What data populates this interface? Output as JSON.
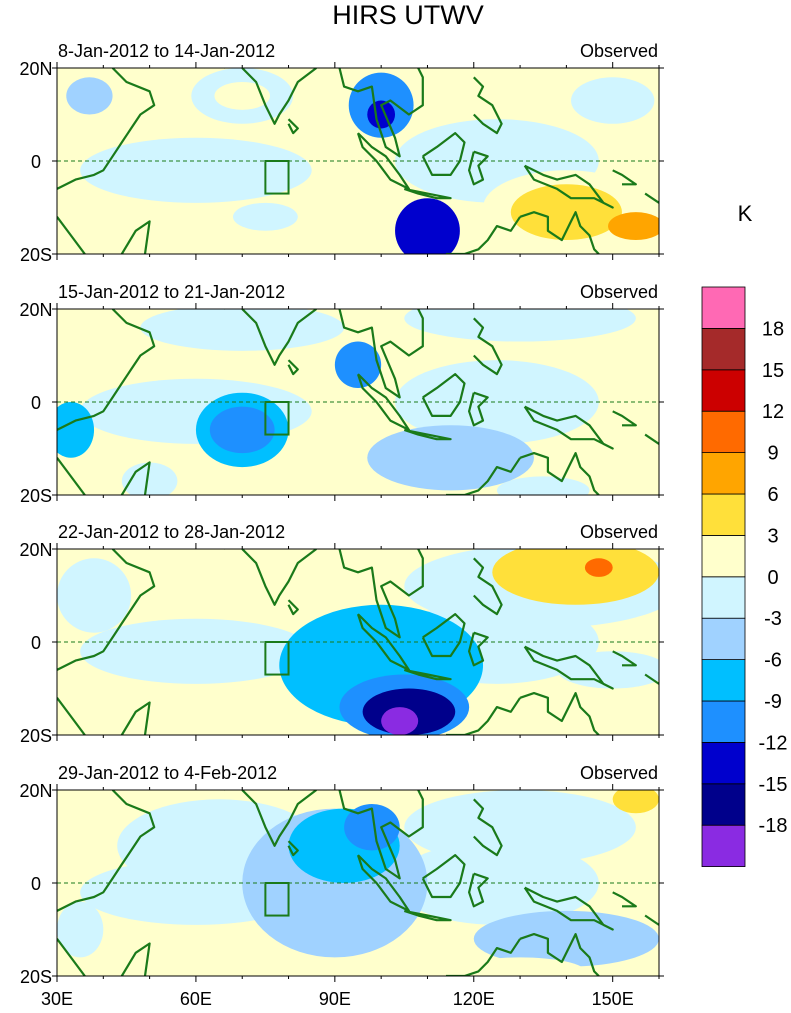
{
  "chart_data": {
    "type": "heatmap",
    "title": "HIRS UTWV",
    "units": "K",
    "x_range": [
      30,
      160
    ],
    "y_range": [
      -20,
      20
    ],
    "xticks": [
      {
        "value": 30,
        "label": "30E"
      },
      {
        "value": 60,
        "label": "60E"
      },
      {
        "value": 90,
        "label": "90E"
      },
      {
        "value": 120,
        "label": "120E"
      },
      {
        "value": 150,
        "label": "150E"
      }
    ],
    "yticks": [
      {
        "value": 20,
        "label": "20N"
      },
      {
        "value": 0,
        "label": "0"
      },
      {
        "value": -20,
        "label": "20S"
      }
    ],
    "colorbar": {
      "colors": [
        "#8a2be2",
        "#00008b",
        "#0000cd",
        "#1e90ff",
        "#00bfff",
        "#a0d2ff",
        "#d0f5ff",
        "#ffffcc",
        "#ffe03a",
        "#ffa500",
        "#ff6a00",
        "#cc0000",
        "#a52a2a",
        "#ff69b4"
      ],
      "labels": [
        "-18",
        "-15",
        "-12",
        "-9",
        "-6",
        "-3",
        "0",
        "3",
        "6",
        "9",
        "12",
        "15",
        "18"
      ]
    },
    "box_region": {
      "lon": [
        75,
        80
      ],
      "lat": [
        -7,
        0
      ]
    },
    "panels": [
      {
        "period": "8-Jan-2012 to 14-Jan-2012",
        "label": "Observed",
        "features": [
          {
            "lon": 70,
            "lat": 14,
            "rx": 11,
            "ry": 6,
            "level": 6
          },
          {
            "lon": 70,
            "lat": 14,
            "rx": 6,
            "ry": 3,
            "level": 7
          },
          {
            "lon": 37,
            "lat": 14,
            "rx": 5,
            "ry": 4,
            "level": 5
          },
          {
            "lon": 150,
            "lat": 13,
            "rx": 9,
            "ry": 5,
            "level": 6
          },
          {
            "lon": 140,
            "lat": -10,
            "rx": 18,
            "ry": 8,
            "level": 7
          },
          {
            "lon": 140,
            "lat": -11,
            "rx": 12,
            "ry": 6,
            "level": 8
          },
          {
            "lon": 155,
            "lat": -14,
            "rx": 6,
            "ry": 3,
            "level": 9
          },
          {
            "lon": 75,
            "lat": -12,
            "rx": 7,
            "ry": 3,
            "level": 6
          },
          {
            "lon": 100,
            "lat": 12,
            "rx": 7,
            "ry": 7,
            "level": 3
          },
          {
            "lon": 100,
            "lat": 10,
            "rx": 3,
            "ry": 3,
            "level": 2
          },
          {
            "lon": 110,
            "lat": -15,
            "rx": 7,
            "ry": 7,
            "level": 2
          }
        ]
      },
      {
        "period": "15-Jan-2012 to 21-Jan-2012",
        "label": "Observed",
        "features": [
          {
            "lon": 70,
            "lat": 16,
            "rx": 22,
            "ry": 5,
            "level": 6
          },
          {
            "lon": 130,
            "lat": 18,
            "rx": 25,
            "ry": 5,
            "level": 6
          },
          {
            "lon": 50,
            "lat": -17,
            "rx": 6,
            "ry": 4,
            "level": 6
          },
          {
            "lon": 135,
            "lat": -19,
            "rx": 10,
            "ry": 3,
            "level": 6
          },
          {
            "lon": 70,
            "lat": -6,
            "rx": 10,
            "ry": 8,
            "level": 4
          },
          {
            "lon": 70,
            "lat": -6,
            "rx": 7,
            "ry": 5,
            "level": 3
          },
          {
            "lon": 33,
            "lat": -6,
            "rx": 5,
            "ry": 6,
            "level": 4
          },
          {
            "lon": 95,
            "lat": 8,
            "rx": 5,
            "ry": 5,
            "level": 3
          },
          {
            "lon": 115,
            "lat": -12,
            "rx": 18,
            "ry": 7,
            "level": 5
          }
        ]
      },
      {
        "period": "22-Jan-2012 to 28-Jan-2012",
        "label": "Observed",
        "features": [
          {
            "lon": 135,
            "lat": 12,
            "rx": 30,
            "ry": 9,
            "level": 6
          },
          {
            "lon": 142,
            "lat": 15,
            "rx": 18,
            "ry": 7,
            "level": 8
          },
          {
            "lon": 147,
            "lat": 16,
            "rx": 3,
            "ry": 2,
            "level": 10
          },
          {
            "lon": 150,
            "lat": -6,
            "rx": 12,
            "ry": 4,
            "level": 6
          },
          {
            "lon": 100,
            "lat": -5,
            "rx": 22,
            "ry": 13,
            "level": 4
          },
          {
            "lon": 105,
            "lat": -14,
            "rx": 14,
            "ry": 7,
            "level": 3
          },
          {
            "lon": 106,
            "lat": -15,
            "rx": 10,
            "ry": 5,
            "level": 1
          },
          {
            "lon": 104,
            "lat": -17,
            "rx": 4,
            "ry": 3,
            "level": 0
          },
          {
            "lon": 38,
            "lat": 10,
            "rx": 8,
            "ry": 8,
            "level": 6
          }
        ]
      },
      {
        "period": "29-Jan-2012 to 4-Feb-2012",
        "label": "Observed",
        "features": [
          {
            "lon": 65,
            "lat": 8,
            "rx": 22,
            "ry": 10,
            "level": 6
          },
          {
            "lon": 130,
            "lat": 12,
            "rx": 25,
            "ry": 8,
            "level": 6
          },
          {
            "lon": 155,
            "lat": 18,
            "rx": 5,
            "ry": 3,
            "level": 8
          },
          {
            "lon": 90,
            "lat": 0,
            "rx": 20,
            "ry": 16,
            "level": 5
          },
          {
            "lon": 92,
            "lat": 8,
            "rx": 12,
            "ry": 8,
            "level": 4
          },
          {
            "lon": 98,
            "lat": 12,
            "rx": 6,
            "ry": 5,
            "level": 3
          },
          {
            "lon": 140,
            "lat": -12,
            "rx": 20,
            "ry": 6,
            "level": 5
          },
          {
            "lon": 130,
            "lat": -19,
            "rx": 14,
            "ry": 3,
            "level": 7
          },
          {
            "lon": 35,
            "lat": -10,
            "rx": 5,
            "ry": 6,
            "level": 6
          }
        ]
      }
    ]
  }
}
